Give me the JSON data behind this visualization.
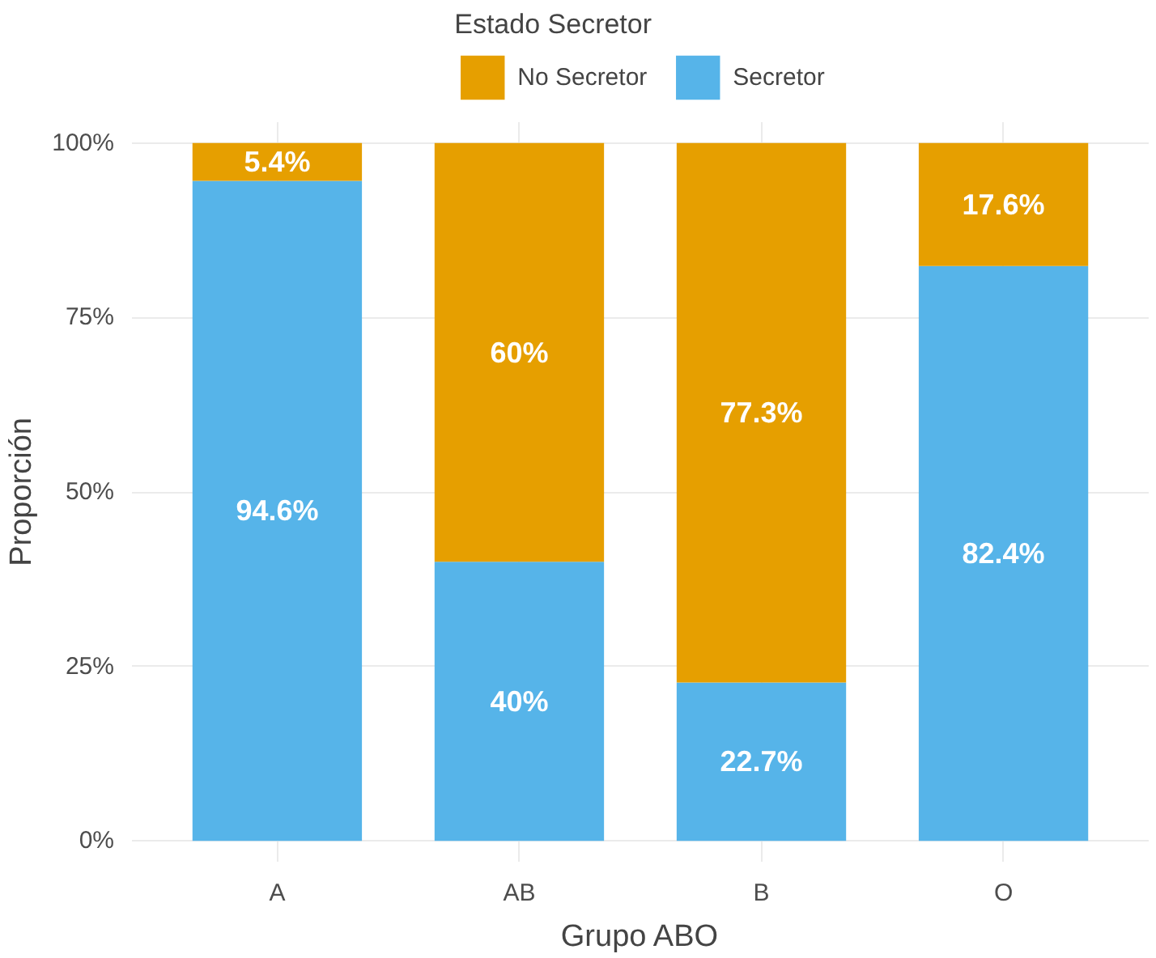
{
  "chart_data": {
    "type": "bar",
    "stacked": true,
    "xlabel": "Grupo ABO",
    "ylabel": "Proporción",
    "legend_title": "Estado Secretor",
    "legend": "top",
    "categories": [
      "A",
      "AB",
      "B",
      "O"
    ],
    "series": [
      {
        "name": "Secretor",
        "color": "#56b4e9",
        "values": [
          94.6,
          40,
          22.7,
          82.4
        ],
        "value_labels": [
          "94.6%",
          "40%",
          "22.7%",
          "82.4%"
        ]
      },
      {
        "name": "No Secretor",
        "color": "#e69f00",
        "values": [
          5.4,
          60,
          77.3,
          17.6
        ],
        "value_labels": [
          "5.4%",
          "60%",
          "77.3%",
          "17.6%"
        ]
      }
    ],
    "ylim": [
      -3,
      103
    ],
    "yticks": [
      {
        "value": 0,
        "label": "0%"
      },
      {
        "value": 25,
        "label": "25%"
      },
      {
        "value": 50,
        "label": "50%"
      },
      {
        "value": 75,
        "label": "75%"
      },
      {
        "value": 100,
        "label": "100%"
      }
    ],
    "grid": true
  }
}
